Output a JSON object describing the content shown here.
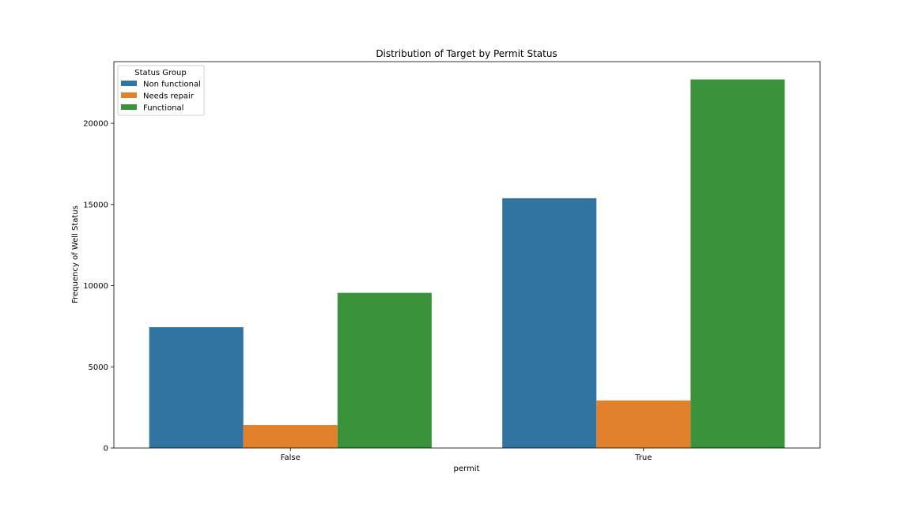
{
  "chart_data": {
    "type": "bar",
    "title": "Distribution of Target by Permit Status",
    "xlabel": "permit",
    "ylabel": "Frequency of Well Status",
    "categories": [
      "False",
      "True"
    ],
    "series": [
      {
        "name": "Non functional",
        "color": "#3274a1",
        "values": [
          7440,
          15384
        ]
      },
      {
        "name": "Needs repair",
        "color": "#e1812c",
        "values": [
          1410,
          2927
        ]
      },
      {
        "name": "Functional",
        "color": "#3a923a",
        "values": [
          9557,
          22702
        ]
      }
    ],
    "ylim": [
      0,
      23800
    ],
    "yticks": [
      0,
      5000,
      10000,
      15000,
      20000
    ],
    "legend": {
      "title": "Status Group",
      "placement": "top-left"
    },
    "grid": false
  }
}
